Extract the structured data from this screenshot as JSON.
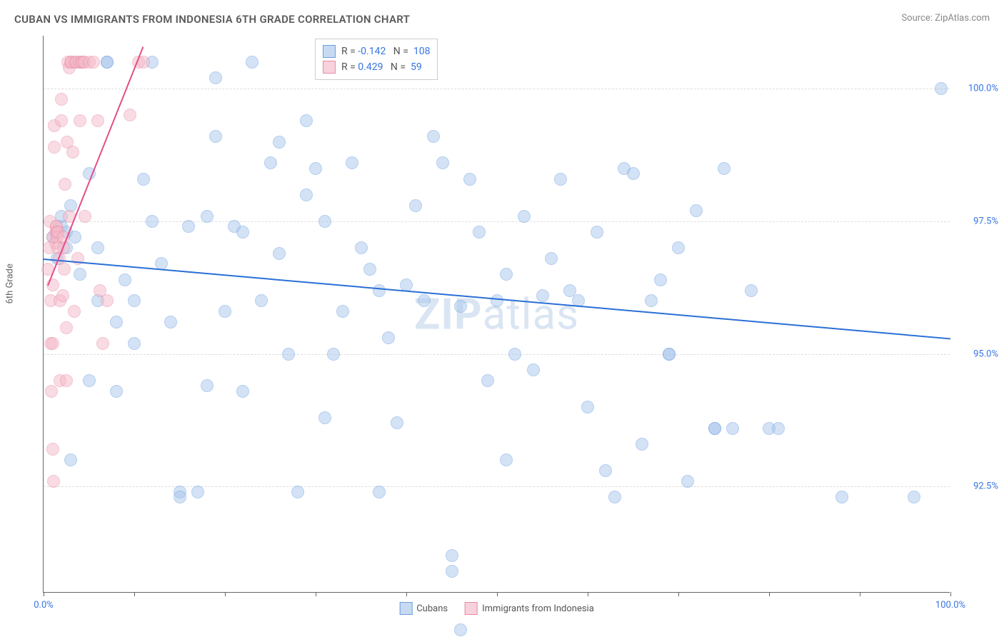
{
  "title": "CUBAN VS IMMIGRANTS FROM INDONESIA 6TH GRADE CORRELATION CHART",
  "source_label": "Source:",
  "source_name": "ZipAtlas.com",
  "y_axis_label": "6th Grade",
  "watermark_bold": "ZIP",
  "watermark_rest": "atlas",
  "chart": {
    "type": "scatter",
    "background_color": "#ffffff",
    "grid_color": "#dddddd",
    "axis_color": "#666666",
    "tick_label_color": "#3674e0",
    "xlim": [
      0,
      100
    ],
    "ylim": [
      90.5,
      101
    ],
    "x_tick_positions": [
      0,
      10,
      20,
      30,
      40,
      50,
      60,
      70,
      80,
      90,
      100
    ],
    "x_tick_labels": {
      "0": "0.0%",
      "100": "100.0%"
    },
    "y_grid_positions": [
      92.5,
      95.0,
      97.5,
      100.0
    ],
    "y_tick_labels": {
      "92.5": "92.5%",
      "95.0": "95.0%",
      "97.5": "97.5%",
      "100.0": "100.0%"
    },
    "marker_radius": 9,
    "marker_opacity": 0.5,
    "series": [
      {
        "name": "Cubans",
        "color_fill": "#a9c6ed",
        "color_stroke": "#6d9fe0",
        "trend_color": "#2a6fd6",
        "trend_width": 2,
        "R": "-0.142",
        "N": "108",
        "trend": {
          "x1": 0,
          "y1": 96.8,
          "x2": 100,
          "y2": 95.3
        },
        "points": [
          [
            1,
            97.2
          ],
          [
            1.5,
            96.8
          ],
          [
            2,
            97.4
          ],
          [
            2,
            97.6
          ],
          [
            2.5,
            97.3
          ],
          [
            2.5,
            97.0
          ],
          [
            3,
            97.8
          ],
          [
            3,
            93.0
          ],
          [
            3.5,
            97.2
          ],
          [
            4,
            96.5
          ],
          [
            5,
            94.5
          ],
          [
            5,
            98.4
          ],
          [
            6,
            97.0
          ],
          [
            6,
            96.0
          ],
          [
            7,
            100.5
          ],
          [
            7,
            100.5
          ],
          [
            8,
            94.3
          ],
          [
            8,
            95.6
          ],
          [
            9,
            96.4
          ],
          [
            10,
            96.0
          ],
          [
            10,
            95.2
          ],
          [
            11,
            98.3
          ],
          [
            12,
            100.5
          ],
          [
            12,
            97.5
          ],
          [
            13,
            96.7
          ],
          [
            14,
            95.6
          ],
          [
            15,
            92.4
          ],
          [
            15,
            92.3
          ],
          [
            16,
            97.4
          ],
          [
            17,
            92.4
          ],
          [
            18,
            97.6
          ],
          [
            18,
            94.4
          ],
          [
            19,
            100.2
          ],
          [
            19,
            99.1
          ],
          [
            20,
            95.8
          ],
          [
            21,
            97.4
          ],
          [
            22,
            97.3
          ],
          [
            22,
            94.3
          ],
          [
            23,
            100.5
          ],
          [
            24,
            96.0
          ],
          [
            25,
            98.6
          ],
          [
            26,
            99.0
          ],
          [
            26,
            96.9
          ],
          [
            27,
            95.0
          ],
          [
            28,
            92.4
          ],
          [
            29,
            98.0
          ],
          [
            29,
            99.4
          ],
          [
            30,
            98.5
          ],
          [
            31,
            97.5
          ],
          [
            31,
            93.8
          ],
          [
            32,
            95.0
          ],
          [
            33,
            95.8
          ],
          [
            34,
            98.6
          ],
          [
            35,
            97.0
          ],
          [
            36,
            96.6
          ],
          [
            37,
            92.4
          ],
          [
            37,
            96.2
          ],
          [
            38,
            95.3
          ],
          [
            39,
            93.7
          ],
          [
            40,
            96.3
          ],
          [
            41,
            97.8
          ],
          [
            42,
            96.0
          ],
          [
            43,
            99.1
          ],
          [
            44,
            98.6
          ],
          [
            45,
            90.9
          ],
          [
            45,
            91.2
          ],
          [
            46,
            95.9
          ],
          [
            46,
            89.8
          ],
          [
            47,
            98.3
          ],
          [
            48,
            97.3
          ],
          [
            49,
            94.5
          ],
          [
            50,
            96.0
          ],
          [
            51,
            96.5
          ],
          [
            51,
            93.0
          ],
          [
            52,
            95.0
          ],
          [
            53,
            97.6
          ],
          [
            54,
            94.7
          ],
          [
            55,
            96.1
          ],
          [
            56,
            96.8
          ],
          [
            57,
            98.3
          ],
          [
            58,
            96.2
          ],
          [
            59,
            96.0
          ],
          [
            60,
            94.0
          ],
          [
            61,
            97.3
          ],
          [
            62,
            92.8
          ],
          [
            63,
            92.3
          ],
          [
            64,
            98.5
          ],
          [
            65,
            98.4
          ],
          [
            66,
            93.3
          ],
          [
            67,
            96.0
          ],
          [
            68,
            96.4
          ],
          [
            69,
            95.0
          ],
          [
            69,
            95.0
          ],
          [
            70,
            97.0
          ],
          [
            71,
            92.6
          ],
          [
            72,
            97.7
          ],
          [
            74,
            93.6
          ],
          [
            74,
            93.6
          ],
          [
            75,
            98.5
          ],
          [
            76,
            93.6
          ],
          [
            78,
            96.2
          ],
          [
            80,
            93.6
          ],
          [
            81,
            93.6
          ],
          [
            88,
            92.3
          ],
          [
            96,
            92.3
          ],
          [
            99,
            100.0
          ]
        ]
      },
      {
        "name": "Immigrants from Indonesia",
        "color_fill": "#f4b9c9",
        "color_stroke": "#e88aa5",
        "trend_color": "#e64d87",
        "trend_width": 2,
        "R": "0.429",
        "N": "59",
        "trend": {
          "x1": 0.5,
          "y1": 96.3,
          "x2": 11,
          "y2": 100.8
        },
        "points": [
          [
            0.5,
            96.6
          ],
          [
            0.6,
            97.0
          ],
          [
            0.7,
            97.5
          ],
          [
            0.8,
            96.0
          ],
          [
            0.8,
            95.2
          ],
          [
            0.9,
            94.3
          ],
          [
            1.0,
            97.2
          ],
          [
            1.0,
            96.3
          ],
          [
            1.0,
            95.2
          ],
          [
            1.0,
            93.2
          ],
          [
            1.1,
            92.6
          ],
          [
            1.2,
            99.3
          ],
          [
            1.2,
            98.9
          ],
          [
            1.3,
            97.1
          ],
          [
            1.3,
            97.3
          ],
          [
            1.4,
            97.4
          ],
          [
            1.4,
            97.4
          ],
          [
            1.5,
            97.3
          ],
          [
            1.5,
            97.2
          ],
          [
            1.6,
            97.3
          ],
          [
            1.6,
            97.0
          ],
          [
            1.7,
            96.8
          ],
          [
            1.8,
            94.5
          ],
          [
            1.8,
            96.0
          ],
          [
            2.0,
            99.8
          ],
          [
            2.0,
            99.4
          ],
          [
            2.1,
            96.1
          ],
          [
            2.2,
            97.0
          ],
          [
            2.2,
            97.2
          ],
          [
            2.3,
            96.6
          ],
          [
            2.4,
            98.2
          ],
          [
            2.5,
            95.5
          ],
          [
            2.5,
            94.5
          ],
          [
            2.6,
            99.0
          ],
          [
            2.7,
            100.5
          ],
          [
            2.8,
            97.6
          ],
          [
            2.8,
            100.4
          ],
          [
            3.0,
            100.5
          ],
          [
            3.1,
            100.5
          ],
          [
            3.2,
            98.8
          ],
          [
            3.4,
            95.8
          ],
          [
            3.5,
            100.5
          ],
          [
            3.6,
            100.5
          ],
          [
            3.8,
            96.8
          ],
          [
            3.9,
            100.5
          ],
          [
            4.0,
            99.4
          ],
          [
            4.2,
            100.5
          ],
          [
            4.3,
            100.5
          ],
          [
            4.5,
            100.5
          ],
          [
            4.6,
            97.6
          ],
          [
            5.0,
            100.5
          ],
          [
            5.5,
            100.5
          ],
          [
            6.0,
            99.4
          ],
          [
            6.2,
            96.2
          ],
          [
            6.5,
            95.2
          ],
          [
            7.0,
            96.0
          ],
          [
            9.5,
            99.5
          ],
          [
            10.5,
            100.5
          ],
          [
            11,
            100.5
          ]
        ]
      }
    ]
  },
  "legend": {
    "swatch_border_blue": "#6d9fe0",
    "swatch_fill_blue": "#c8daf2",
    "swatch_border_pink": "#e88aa5",
    "swatch_fill_pink": "#f7d2dd",
    "R_label": "R =",
    "N_label": "N ="
  }
}
